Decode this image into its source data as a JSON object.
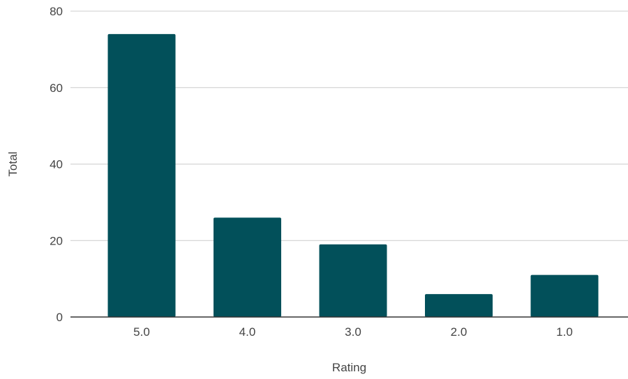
{
  "chart_data": {
    "type": "bar",
    "title": "",
    "xlabel": "Rating",
    "ylabel": "Total",
    "categories": [
      "5.0",
      "4.0",
      "3.0",
      "2.0",
      "1.0"
    ],
    "values": [
      74,
      26,
      19,
      6,
      11
    ],
    "ylim": [
      0,
      80
    ],
    "yticks": [
      "0",
      "20",
      "40",
      "60",
      "80"
    ],
    "grid": true,
    "legend": "none",
    "bar_color": "#02505A"
  }
}
